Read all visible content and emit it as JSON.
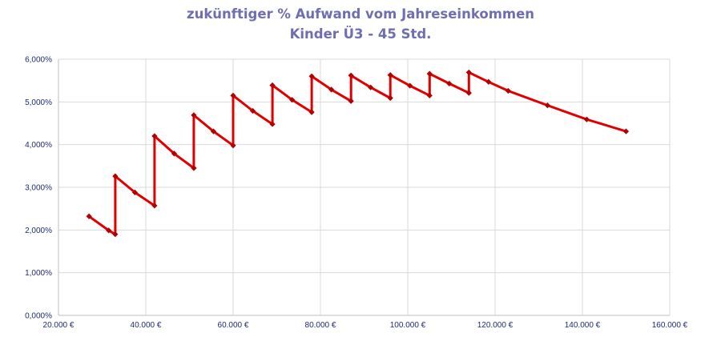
{
  "chart_data": {
    "type": "line",
    "title_lines": [
      "zukünftiger % Aufwand vom Jahreseinkommen",
      "Kinder Ü3 - 45 Std."
    ],
    "xlabel": "",
    "ylabel": "",
    "xlim": [
      20000,
      160000
    ],
    "ylim": [
      0,
      6
    ],
    "x_ticks": [
      20000,
      40000,
      60000,
      80000,
      100000,
      120000,
      140000,
      160000
    ],
    "x_tick_labels": [
      "20.000 €",
      "40.000 €",
      "60.000 €",
      "80.000 €",
      "100.000 €",
      "120.000 €",
      "140.000 €",
      "160.000 €"
    ],
    "y_ticks": [
      0,
      1,
      2,
      3,
      4,
      5,
      6
    ],
    "y_tick_labels": [
      "0,000%",
      "1,000%",
      "2,000%",
      "3,000%",
      "4,000%",
      "5,000%",
      "6,000%"
    ],
    "grid": true,
    "legend": "none",
    "series": [
      {
        "color": "#e00000",
        "marker_color": "#b00000",
        "x": [
          27000,
          31500,
          33000,
          33000,
          37500,
          42000,
          42000,
          46500,
          51000,
          51000,
          55500,
          60000,
          60000,
          64500,
          69000,
          69000,
          73500,
          78000,
          78000,
          82500,
          87000,
          87000,
          91500,
          96000,
          96000,
          100500,
          105000,
          105000,
          109500,
          114000,
          114000,
          118500,
          123000,
          132000,
          141000,
          150000
        ],
        "y": [
          2.32,
          1.99,
          1.9,
          3.26,
          2.88,
          2.57,
          4.2,
          3.79,
          3.45,
          4.69,
          4.31,
          3.98,
          5.15,
          4.79,
          4.48,
          5.39,
          5.05,
          4.76,
          5.6,
          5.29,
          5.02,
          5.62,
          5.34,
          5.09,
          5.63,
          5.38,
          5.15,
          5.66,
          5.43,
          5.21,
          5.69,
          5.47,
          5.26,
          4.92,
          4.59,
          4.31
        ]
      }
    ]
  }
}
